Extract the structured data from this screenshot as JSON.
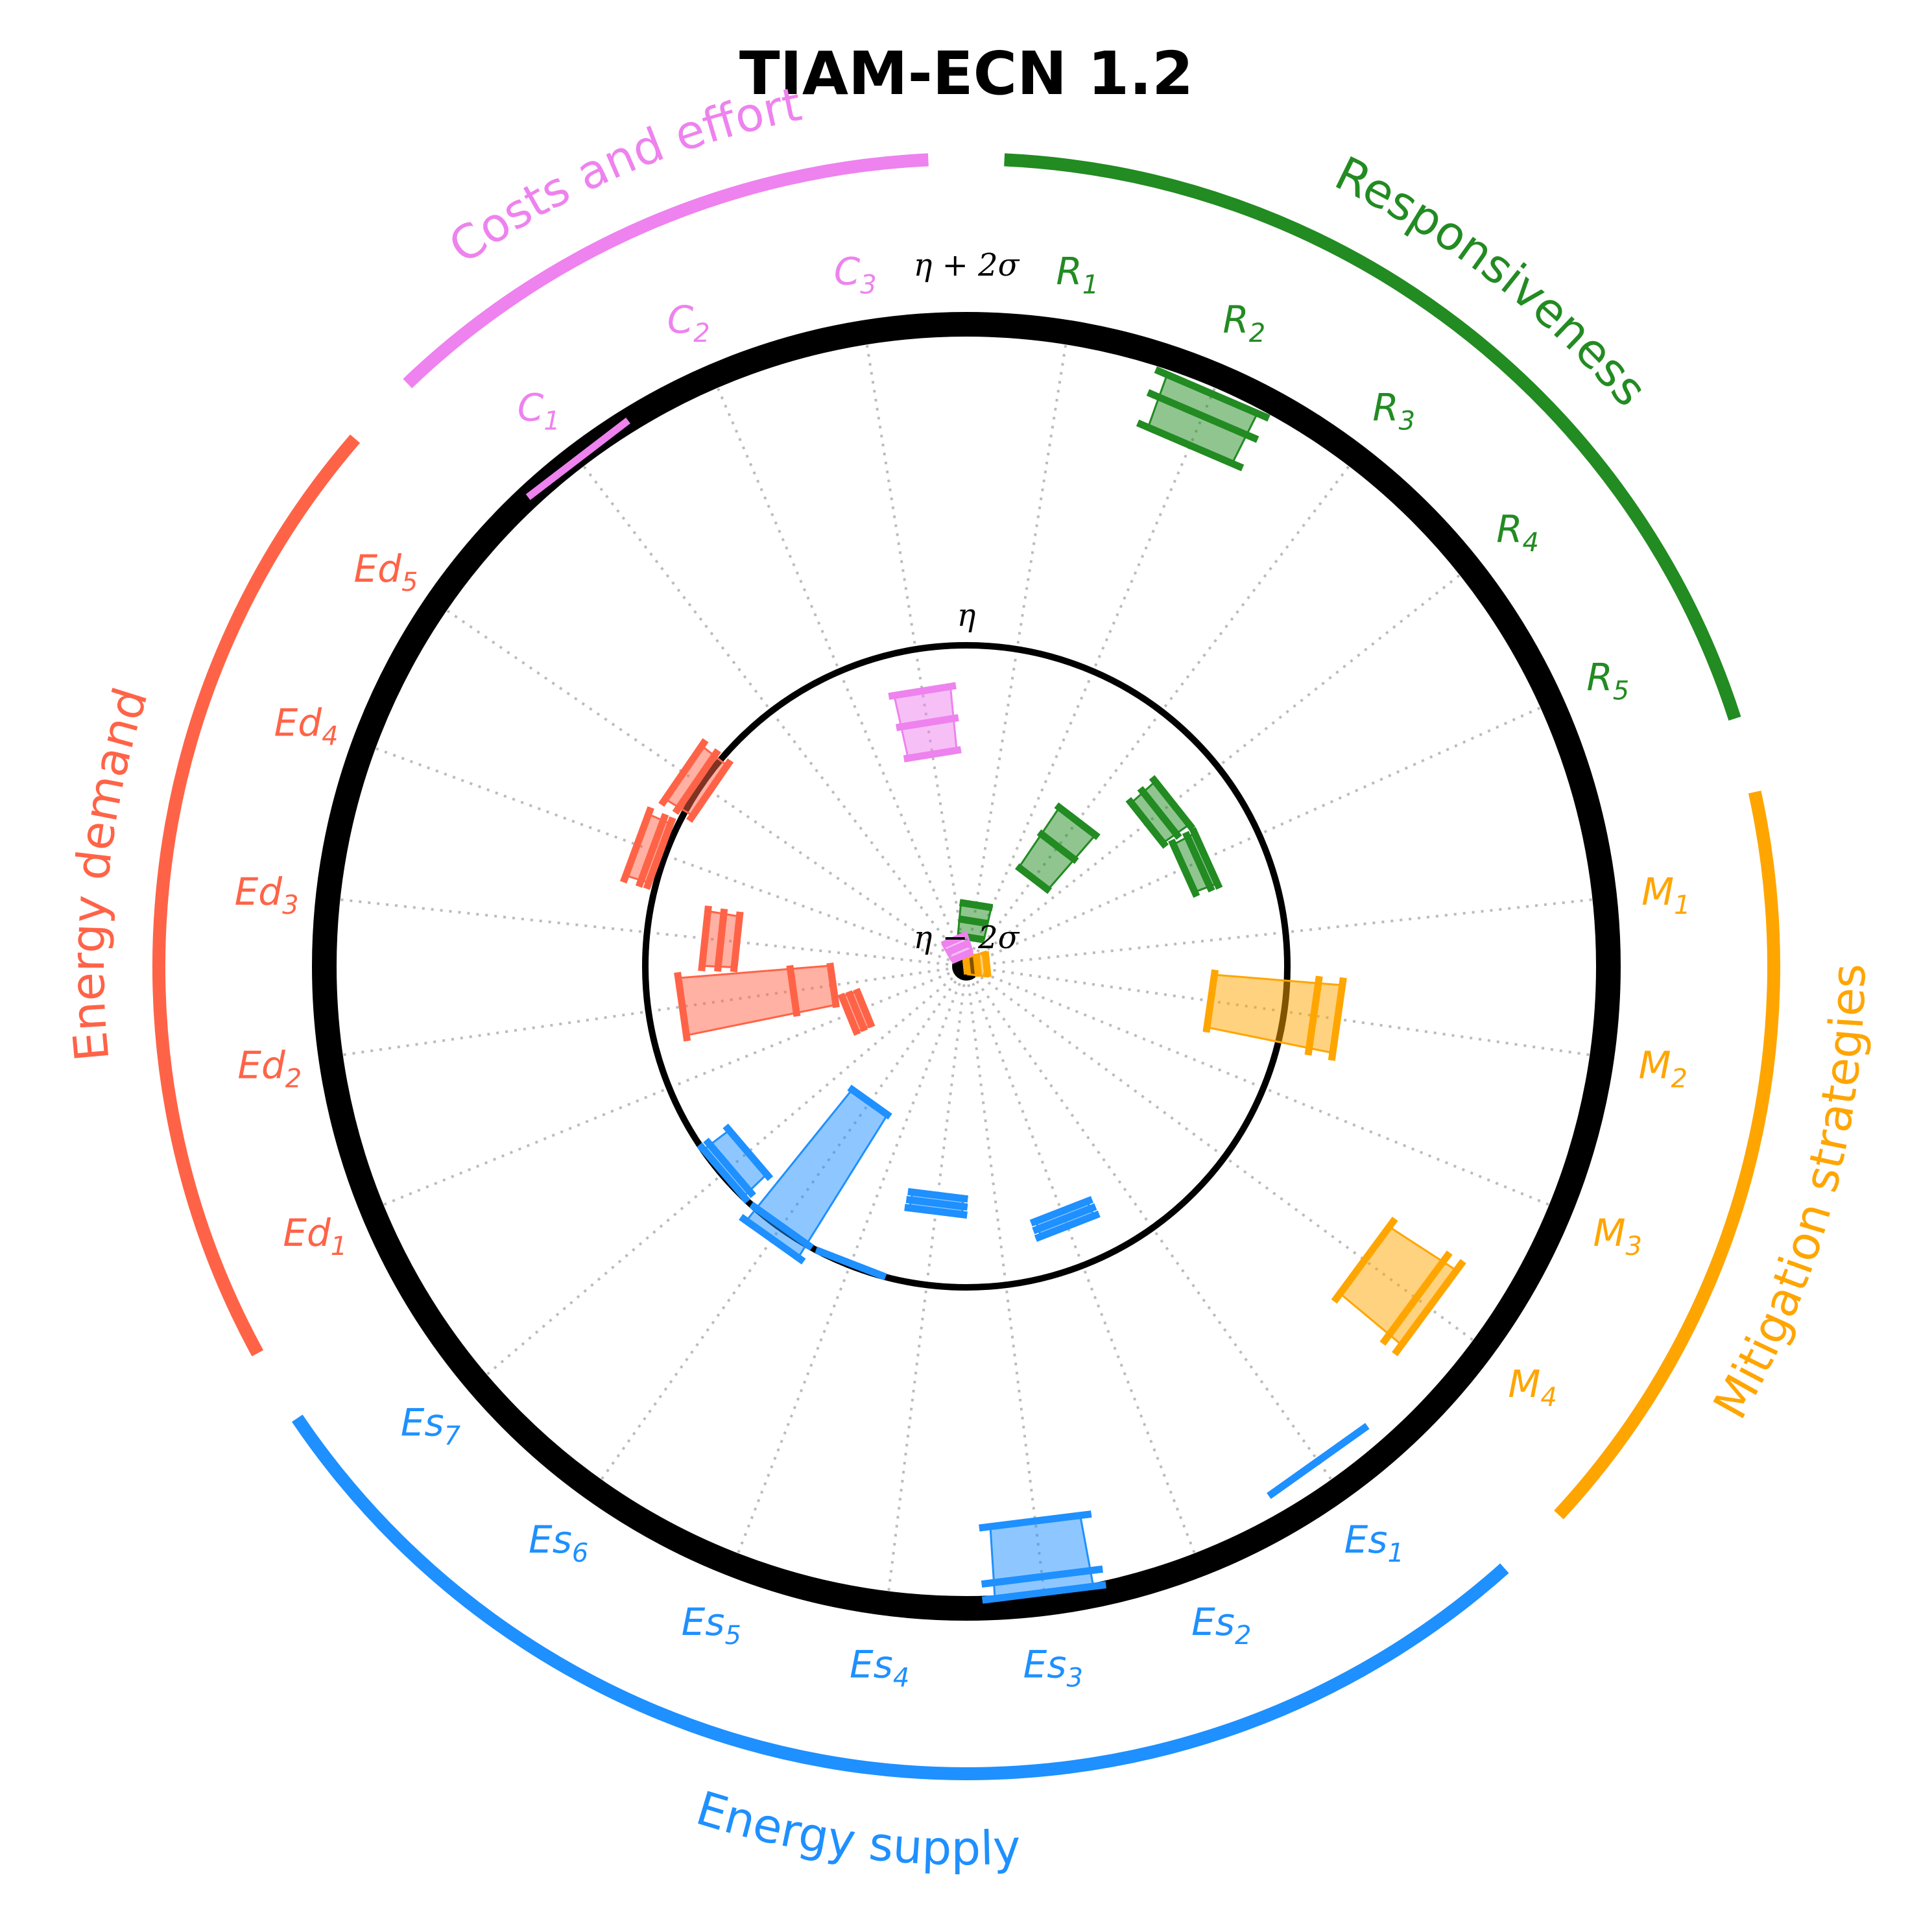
{
  "chart_data": {
    "type": "radial-range",
    "title": "TIAM-ECN 1.2",
    "rings": {
      "outer": "η + 2σ",
      "middle": "η",
      "center": "η − 2σ"
    },
    "scale": {
      "min": -2,
      "max": 2,
      "unit": "σ"
    },
    "grid": true,
    "categories": [
      {
        "name": "Responsiveness",
        "color": "#228B22",
        "indicators": [
          {
            "base": "R",
            "sub": "1",
            "values": [
              -1.8,
              -1.7,
              -1.6
            ]
          },
          {
            "base": "R",
            "sub": "2",
            "values": [
              1.55,
              1.75,
              1.9
            ]
          },
          {
            "base": "R",
            "sub": "3",
            "values": [
              -1.3,
              -1.05,
              -0.85
            ]
          },
          {
            "base": "R",
            "sub": "4",
            "values": [
              -0.55,
              -0.45,
              -0.35
            ]
          },
          {
            "base": "R",
            "sub": "5",
            "values": [
              -0.5,
              -0.4,
              -0.35
            ]
          }
        ]
      },
      {
        "name": "Mitigation strategies",
        "color": "#FFA500",
        "indicators": [
          {
            "base": "M",
            "sub": "1",
            "values": [
              -1.95,
              -1.9,
              -1.85
            ]
          },
          {
            "base": "M",
            "sub": "2",
            "values": [
              -0.45,
              0.2,
              0.35
            ]
          },
          {
            "base": "M",
            "sub": "3",
            "values": [
              -2.0,
              -2.0,
              -2.0
            ]
          },
          {
            "base": "M",
            "sub": "4",
            "values": [
              1.1,
              1.5,
              1.6
            ]
          }
        ]
      },
      {
        "name": "Energy supply",
        "color": "#1E90FF",
        "indicators": [
          {
            "base": "Es",
            "sub": "1",
            "values": [
              1.8,
              1.8,
              1.8
            ]
          },
          {
            "base": "Es",
            "sub": "2",
            "values": [
              -0.35,
              -0.3,
              -0.25
            ]
          },
          {
            "base": "Es",
            "sub": "3",
            "values": [
              1.5,
              1.85,
              1.95
            ]
          },
          {
            "base": "Es",
            "sub": "4",
            "values": [
              -0.55,
              -0.5,
              -0.45
            ]
          },
          {
            "base": "Es",
            "sub": "5",
            "values": [
              0.0,
              0.0,
              0.0
            ]
          },
          {
            "base": "Es",
            "sub": "6",
            "values": [
              -0.95,
              0.0,
              0.1
            ]
          },
          {
            "base": "Es",
            "sub": "7",
            "values": [
              -0.2,
              -0.05,
              0.0
            ]
          }
        ]
      },
      {
        "name": "Energy demand",
        "color": "#FF6347",
        "indicators": [
          {
            "base": "Ed",
            "sub": "1",
            "values": [
              -1.3,
              -1.25,
              -1.2
            ]
          },
          {
            "base": "Ed",
            "sub": "2",
            "values": [
              -1.15,
              -0.9,
              -0.2
            ]
          },
          {
            "base": "Ed",
            "sub": "3",
            "values": [
              -0.55,
              -0.45,
              -0.35
            ]
          },
          {
            "base": "Ed",
            "sub": "4",
            "values": [
              0.05,
              0.1,
              0.2
            ]
          },
          {
            "base": "Ed",
            "sub": "5",
            "values": [
              -0.05,
              0.05,
              0.15
            ]
          }
        ]
      },
      {
        "name": "Costs and effort",
        "color": "#EE82EE",
        "indicators": [
          {
            "base": "C",
            "sub": "1",
            "values": [
              2.0,
              2.0,
              2.0
            ]
          },
          {
            "base": "C",
            "sub": "2",
            "values": [
              -1.9,
              -1.85,
              -1.8
            ]
          },
          {
            "base": "C",
            "sub": "3",
            "values": [
              -0.65,
              -0.45,
              -0.25
            ]
          }
        ]
      }
    ]
  }
}
